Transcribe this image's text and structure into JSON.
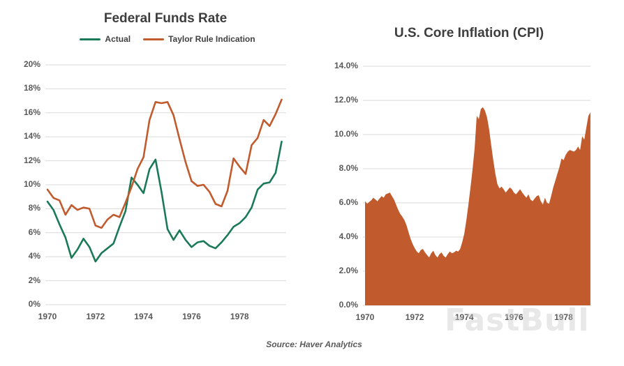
{
  "page": {
    "background": "#ffffff",
    "watermark": "FastBull",
    "source_note": "Source: Haver Analytics"
  },
  "colors": {
    "actual_green": "#1a7a57",
    "taylor_orange": "#c15b2d",
    "area_orange": "#c15b2d",
    "title_text": "#3d3d3d",
    "axis_text": "#595959",
    "gridline": "#d9d9d9"
  },
  "chart_data": [
    {
      "type": "line",
      "title": "Federal Funds Rate",
      "legend_position": "top",
      "grid": true,
      "x_start_year": 1970,
      "x_step_years": 0.25,
      "x_range_years": [
        1970,
        1979.94
      ],
      "x_tick_years": [
        1970,
        1972,
        1974,
        1976,
        1978
      ],
      "x_tick_labels": [
        "1970",
        "1972",
        "1974",
        "1976",
        "1978"
      ],
      "y_range": [
        0,
        20
      ],
      "y_tick_step": 2,
      "y_tick_labels": [
        "20%",
        "18%",
        "16%",
        "14%",
        "12%",
        "10%",
        "8%",
        "6%",
        "4%",
        "2%",
        "0%"
      ],
      "series": [
        {
          "name": "Actual",
          "color": "#1a7a57",
          "values": [
            8.6,
            7.9,
            6.7,
            5.6,
            3.9,
            4.6,
            5.5,
            4.8,
            3.6,
            4.3,
            4.7,
            5.1,
            6.5,
            7.8,
            10.6,
            10.0,
            9.3,
            11.3,
            12.1,
            9.4,
            6.3,
            5.4,
            6.2,
            5.4,
            4.8,
            5.2,
            5.3,
            4.9,
            4.7,
            5.2,
            5.8,
            6.5,
            6.8,
            7.3,
            8.1,
            9.6,
            10.1,
            10.2,
            11.0,
            13.6
          ]
        },
        {
          "name": "Taylor Rule Indication",
          "color": "#c15b2d",
          "values": [
            9.6,
            8.9,
            8.7,
            7.5,
            8.3,
            7.9,
            8.1,
            8.0,
            6.6,
            6.4,
            7.1,
            7.5,
            7.3,
            8.5,
            9.8,
            11.3,
            12.3,
            15.4,
            16.9,
            16.8,
            16.9,
            15.8,
            13.8,
            11.9,
            10.3,
            9.9,
            10.0,
            9.4,
            8.4,
            8.2,
            9.5,
            12.2,
            11.5,
            10.9,
            13.3,
            13.9,
            15.4,
            14.9,
            15.9,
            17.1
          ]
        }
      ]
    },
    {
      "type": "area",
      "title": "U.S. Core Inflation (CPI)",
      "grid": true,
      "x_start_year": 1970,
      "x_step_years": 0.0833333,
      "x_range_years": [
        1970,
        1979.085
      ],
      "x_tick_years": [
        1970,
        1972,
        1974,
        1976,
        1978
      ],
      "x_tick_labels": [
        "1970",
        "1972",
        "1974",
        "1976",
        "1978"
      ],
      "y_range": [
        0,
        14
      ],
      "y_tick_step": 2,
      "y_tick_labels": [
        "14.0%",
        "12.0%",
        "10.0%",
        "8.0%",
        "6.0%",
        "4.0%",
        "2.0%",
        "0.0%"
      ],
      "series": [
        {
          "name": "U.S. Core Inflation (CPI)",
          "color": "#c15b2d",
          "values": [
            6.1,
            5.95,
            6.05,
            6.15,
            6.3,
            6.2,
            6.1,
            6.25,
            6.4,
            6.3,
            6.5,
            6.55,
            6.6,
            6.4,
            6.2,
            5.9,
            5.6,
            5.35,
            5.2,
            5.0,
            4.7,
            4.3,
            3.9,
            3.6,
            3.35,
            3.15,
            3.05,
            3.25,
            3.3,
            3.1,
            2.95,
            2.8,
            3.05,
            3.2,
            2.95,
            2.8,
            3.0,
            3.1,
            2.9,
            2.8,
            3.0,
            3.15,
            3.05,
            3.1,
            3.2,
            3.15,
            3.3,
            3.7,
            4.2,
            5.0,
            5.9,
            6.9,
            8.0,
            9.2,
            11.1,
            10.9,
            11.5,
            11.6,
            11.4,
            11.0,
            10.3,
            9.4,
            8.5,
            7.7,
            7.1,
            6.85,
            6.95,
            6.8,
            6.6,
            6.75,
            6.9,
            6.8,
            6.6,
            6.5,
            6.65,
            6.8,
            6.6,
            6.45,
            6.3,
            6.5,
            6.2,
            6.1,
            6.25,
            6.4,
            6.45,
            6.1,
            5.9,
            6.3,
            6.0,
            5.95,
            6.4,
            6.9,
            7.3,
            7.7,
            8.1,
            8.6,
            8.5,
            8.8,
            9.0,
            9.1,
            9.05,
            9.0,
            9.1,
            9.3,
            9.1,
            9.9,
            9.7,
            10.4,
            11.1,
            11.3
          ]
        }
      ]
    }
  ]
}
